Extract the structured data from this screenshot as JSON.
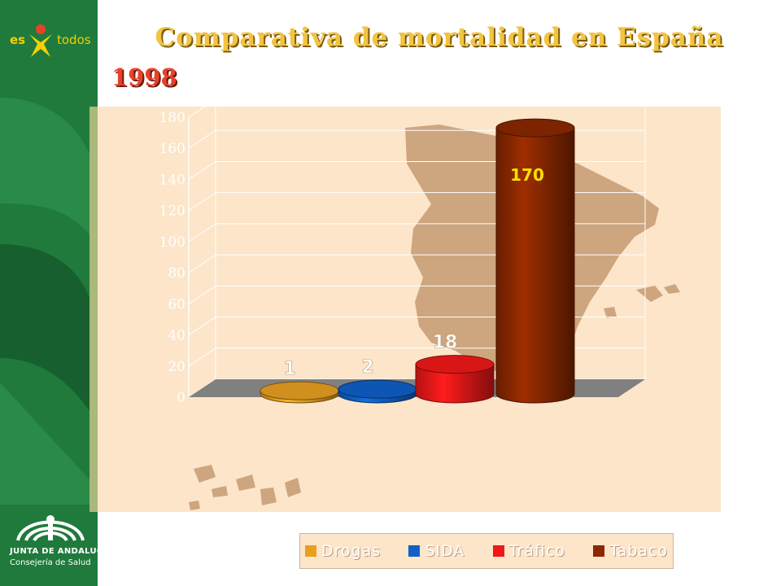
{
  "branding": {
    "logo_es": "es",
    "logo_todos": "todos",
    "org": "JUNTA DE ANDALUCIA",
    "dept": "Consejería de Salud",
    "sidebar_color": "#1f7a3c"
  },
  "page": {
    "title": "Comparativa de mortalidad en España",
    "year": "1998"
  },
  "chart_data": {
    "type": "bar",
    "title": "",
    "xlabel": "",
    "ylabel": "",
    "ylim": [
      0,
      180
    ],
    "yticks": [
      "0",
      "20",
      "40",
      "60",
      "80",
      "100",
      "120",
      "140",
      "160",
      "180"
    ],
    "categories": [
      "Drogas",
      "SIDA",
      "Tráfico",
      "Tabaco"
    ],
    "values": [
      1,
      2,
      18,
      170
    ],
    "data_labels": [
      "1",
      "2",
      "18",
      "170"
    ],
    "colors": [
      "#e8a020",
      "#1060c8",
      "#f01818",
      "#8a2800"
    ],
    "legend_position": "bottom",
    "grid": true
  }
}
